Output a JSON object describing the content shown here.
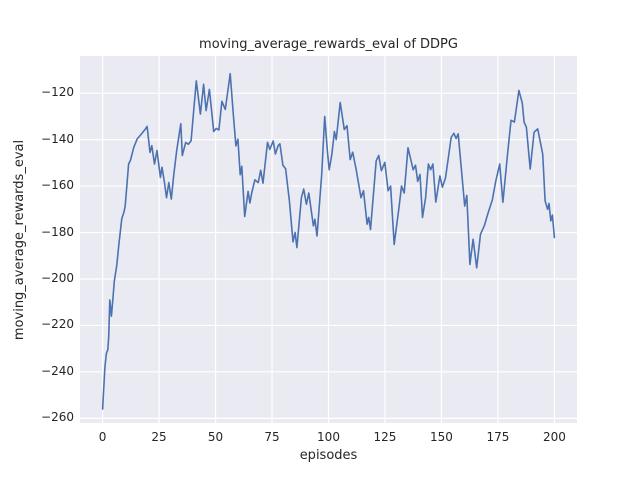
{
  "figure": {
    "title": "moving_average_rewards_eval of DDPG",
    "xlabel": "episodes",
    "ylabel": "moving_average_rewards_eval"
  },
  "chart_data": {
    "type": "line",
    "title": "moving_average_rewards_eval of DDPG",
    "xlabel": "episodes",
    "ylabel": "moving_average_rewards_eval",
    "x_ticks": [
      0,
      25,
      50,
      75,
      100,
      125,
      150,
      175,
      200
    ],
    "x_tick_labels": [
      "0",
      "25",
      "50",
      "75",
      "100",
      "125",
      "150",
      "175",
      "200"
    ],
    "y_ticks": [
      -260,
      -240,
      -220,
      -200,
      -180,
      -160,
      -140,
      -120
    ],
    "y_tick_labels": [
      "−260",
      "−240",
      "−220",
      "−200",
      "−180",
      "−160",
      "−140",
      "−120"
    ],
    "xlim": [
      -10,
      210
    ],
    "ylim": [
      -262,
      -104
    ],
    "grid": true,
    "grid_style": "seaborn-darkgrid",
    "legend": false,
    "style": {
      "figure_bg": "#ffffff",
      "axes_bg": "#eaeaf2",
      "grid_color": "#ffffff",
      "line_color": "#4c72b0",
      "text_color": "#262626",
      "line_width": 1.6
    },
    "series": [
      {
        "name": "moving_average_rewards_eval",
        "points": [
          [
            0,
            -256
          ],
          [
            1,
            -238
          ],
          [
            1.7,
            -232
          ],
          [
            2.3,
            -230.5
          ],
          [
            2.7,
            -225
          ],
          [
            3.2,
            -209
          ],
          [
            3.9,
            -216
          ],
          [
            4.7,
            -207
          ],
          [
            5.2,
            -201
          ],
          [
            6.3,
            -194
          ],
          [
            7.2,
            -185
          ],
          [
            8.5,
            -174
          ],
          [
            9.5,
            -171
          ],
          [
            10,
            -168.5
          ],
          [
            10.9,
            -158
          ],
          [
            11.5,
            -150.5
          ],
          [
            12.3,
            -149
          ],
          [
            13.8,
            -143.3
          ],
          [
            15.3,
            -139.7
          ],
          [
            17,
            -137.8
          ],
          [
            19,
            -135.4
          ],
          [
            19.7,
            -134.3
          ],
          [
            21,
            -145.5
          ],
          [
            21.8,
            -142.6
          ],
          [
            23,
            -150.5
          ],
          [
            24.1,
            -144.7
          ],
          [
            25.6,
            -156.3
          ],
          [
            26.3,
            -151.9
          ],
          [
            27.4,
            -158.5
          ],
          [
            28.3,
            -165
          ],
          [
            29.3,
            -158.5
          ],
          [
            30.4,
            -165.6
          ],
          [
            31.5,
            -155
          ],
          [
            32.8,
            -144.7
          ],
          [
            34.6,
            -133.2
          ],
          [
            35.3,
            -146.9
          ],
          [
            36.8,
            -141.2
          ],
          [
            38,
            -142
          ],
          [
            39.2,
            -140.5
          ],
          [
            40.3,
            -128
          ],
          [
            41.5,
            -114.7
          ],
          [
            43.3,
            -129
          ],
          [
            44.7,
            -116.2
          ],
          [
            45.8,
            -127.5
          ],
          [
            47.3,
            -118.4
          ],
          [
            49.2,
            -136.5
          ],
          [
            50.3,
            -135.2
          ],
          [
            51.5,
            -135.8
          ],
          [
            52.8,
            -123.5
          ],
          [
            54.3,
            -127
          ],
          [
            56.5,
            -111.6
          ],
          [
            57.9,
            -129.6
          ],
          [
            59,
            -142.7
          ],
          [
            59.9,
            -139.8
          ],
          [
            60.9,
            -155.1
          ],
          [
            61.6,
            -151.5
          ],
          [
            62.9,
            -173.1
          ],
          [
            64.4,
            -162.3
          ],
          [
            65.2,
            -167.3
          ],
          [
            66,
            -163
          ],
          [
            67.4,
            -157.3
          ],
          [
            68.9,
            -158.5
          ],
          [
            70,
            -153.2
          ],
          [
            71,
            -158.7
          ],
          [
            73,
            -141.2
          ],
          [
            74,
            -144.2
          ],
          [
            75.5,
            -140.6
          ],
          [
            76.5,
            -146.2
          ],
          [
            77.7,
            -142.6
          ],
          [
            78.5,
            -141.8
          ],
          [
            79.8,
            -151
          ],
          [
            81,
            -152.5
          ],
          [
            82.7,
            -166.4
          ],
          [
            84.3,
            -184
          ],
          [
            85.2,
            -180
          ],
          [
            86,
            -186.5
          ],
          [
            88,
            -165
          ],
          [
            89,
            -161.3
          ],
          [
            90.2,
            -167.8
          ],
          [
            91.3,
            -163
          ],
          [
            93.3,
            -177.2
          ],
          [
            94,
            -174.3
          ],
          [
            94.9,
            -181.5
          ],
          [
            97,
            -155
          ],
          [
            98.3,
            -130
          ],
          [
            99.5,
            -145
          ],
          [
            100.3,
            -153
          ],
          [
            101.5,
            -146.2
          ],
          [
            102.6,
            -136.5
          ],
          [
            103.4,
            -140
          ],
          [
            105.2,
            -124
          ],
          [
            107,
            -135.7
          ],
          [
            108.2,
            -134
          ],
          [
            109.6,
            -148.6
          ],
          [
            110.7,
            -145.4
          ],
          [
            112.2,
            -152.7
          ],
          [
            114.4,
            -165
          ],
          [
            115.5,
            -162
          ],
          [
            117.1,
            -176.4
          ],
          [
            117.8,
            -173.5
          ],
          [
            118.6,
            -178.7
          ],
          [
            121.1,
            -149.1
          ],
          [
            122.2,
            -146.8
          ],
          [
            123.4,
            -153.4
          ],
          [
            124.9,
            -149.8
          ],
          [
            126.4,
            -162
          ],
          [
            127.5,
            -160
          ],
          [
            129.1,
            -185.1
          ],
          [
            131.2,
            -169.2
          ],
          [
            132.3,
            -160
          ],
          [
            133.5,
            -163
          ],
          [
            135.2,
            -143.5
          ],
          [
            136.5,
            -149
          ],
          [
            137.5,
            -153
          ],
          [
            138.5,
            -151
          ],
          [
            139.5,
            -158
          ],
          [
            140.5,
            -155
          ],
          [
            141.6,
            -173.5
          ],
          [
            143,
            -165
          ],
          [
            144.2,
            -150.5
          ],
          [
            145.2,
            -153
          ],
          [
            146.2,
            -150.5
          ],
          [
            147.5,
            -166.9
          ],
          [
            149.3,
            -155.6
          ],
          [
            150.4,
            -160.5
          ],
          [
            151.8,
            -156.5
          ],
          [
            154.3,
            -139
          ],
          [
            155.5,
            -137.3
          ],
          [
            156.5,
            -139.5
          ],
          [
            157.4,
            -137.5
          ],
          [
            160.3,
            -168.6
          ],
          [
            161.2,
            -164
          ],
          [
            162.6,
            -193.7
          ],
          [
            164,
            -182.9
          ],
          [
            165.6,
            -195.2
          ],
          [
            167.3,
            -180.7
          ],
          [
            169,
            -177
          ],
          [
            170.5,
            -172
          ],
          [
            172.5,
            -166
          ],
          [
            174,
            -158
          ],
          [
            175.8,
            -150.5
          ],
          [
            177.2,
            -167
          ],
          [
            179.3,
            -146
          ],
          [
            180.8,
            -131.7
          ],
          [
            182.3,
            -132.4
          ],
          [
            184.3,
            -118.8
          ],
          [
            185.8,
            -124.3
          ],
          [
            186.6,
            -132.5
          ],
          [
            187.6,
            -134.7
          ],
          [
            189.3,
            -152.7
          ],
          [
            191,
            -136.8
          ],
          [
            192.6,
            -135.4
          ],
          [
            194.8,
            -146.2
          ],
          [
            195.9,
            -166.4
          ],
          [
            197,
            -170
          ],
          [
            197.6,
            -167.5
          ],
          [
            198.4,
            -175
          ],
          [
            199.1,
            -172.5
          ],
          [
            200,
            -182.2
          ]
        ]
      }
    ]
  }
}
